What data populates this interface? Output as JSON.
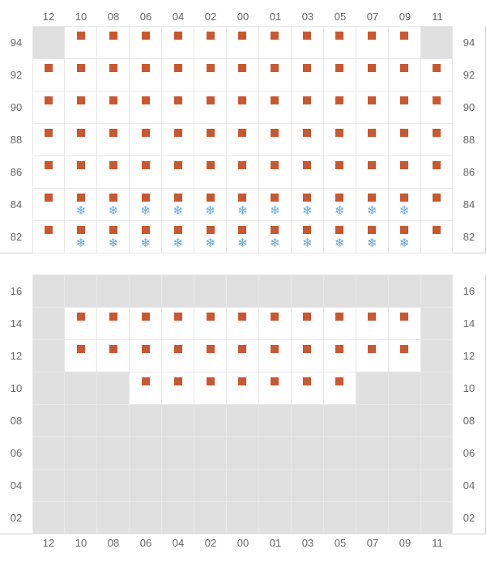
{
  "colors": {
    "marker": "#c9572f",
    "snowflake": "#5fa8dd",
    "disabled_bg": "#e0e0e0",
    "available_bg": "#ffffff",
    "grid_border": "#e8e8e8",
    "label_text": "#666666"
  },
  "columns": [
    "12",
    "10",
    "08",
    "06",
    "04",
    "02",
    "00",
    "01",
    "03",
    "05",
    "07",
    "09",
    "11"
  ],
  "sections": [
    {
      "rows": [
        {
          "label": "94",
          "cells": [
            {
              "state": "disabled"
            },
            {
              "state": "available",
              "marker": true
            },
            {
              "state": "available",
              "marker": true
            },
            {
              "state": "available",
              "marker": true
            },
            {
              "state": "available",
              "marker": true
            },
            {
              "state": "available",
              "marker": true
            },
            {
              "state": "available",
              "marker": true
            },
            {
              "state": "available",
              "marker": true
            },
            {
              "state": "available",
              "marker": true
            },
            {
              "state": "available",
              "marker": true
            },
            {
              "state": "available",
              "marker": true
            },
            {
              "state": "available",
              "marker": true
            },
            {
              "state": "disabled"
            }
          ]
        },
        {
          "label": "92",
          "cells": [
            {
              "state": "available",
              "marker": true
            },
            {
              "state": "available",
              "marker": true
            },
            {
              "state": "available",
              "marker": true
            },
            {
              "state": "available",
              "marker": true
            },
            {
              "state": "available",
              "marker": true
            },
            {
              "state": "available",
              "marker": true
            },
            {
              "state": "available",
              "marker": true
            },
            {
              "state": "available",
              "marker": true
            },
            {
              "state": "available",
              "marker": true
            },
            {
              "state": "available",
              "marker": true
            },
            {
              "state": "available",
              "marker": true
            },
            {
              "state": "available",
              "marker": true
            },
            {
              "state": "available",
              "marker": true
            }
          ]
        },
        {
          "label": "90",
          "cells": [
            {
              "state": "available",
              "marker": true
            },
            {
              "state": "available",
              "marker": true
            },
            {
              "state": "available",
              "marker": true
            },
            {
              "state": "available",
              "marker": true
            },
            {
              "state": "available",
              "marker": true
            },
            {
              "state": "available",
              "marker": true
            },
            {
              "state": "available",
              "marker": true
            },
            {
              "state": "available",
              "marker": true
            },
            {
              "state": "available",
              "marker": true
            },
            {
              "state": "available",
              "marker": true
            },
            {
              "state": "available",
              "marker": true
            },
            {
              "state": "available",
              "marker": true
            },
            {
              "state": "available",
              "marker": true
            }
          ]
        },
        {
          "label": "88",
          "cells": [
            {
              "state": "available",
              "marker": true
            },
            {
              "state": "available",
              "marker": true
            },
            {
              "state": "available",
              "marker": true
            },
            {
              "state": "available",
              "marker": true
            },
            {
              "state": "available",
              "marker": true
            },
            {
              "state": "available",
              "marker": true
            },
            {
              "state": "available",
              "marker": true
            },
            {
              "state": "available",
              "marker": true
            },
            {
              "state": "available",
              "marker": true
            },
            {
              "state": "available",
              "marker": true
            },
            {
              "state": "available",
              "marker": true
            },
            {
              "state": "available",
              "marker": true
            },
            {
              "state": "available",
              "marker": true
            }
          ]
        },
        {
          "label": "86",
          "cells": [
            {
              "state": "available",
              "marker": true
            },
            {
              "state": "available",
              "marker": true
            },
            {
              "state": "available",
              "marker": true
            },
            {
              "state": "available",
              "marker": true
            },
            {
              "state": "available",
              "marker": true
            },
            {
              "state": "available",
              "marker": true
            },
            {
              "state": "available",
              "marker": true
            },
            {
              "state": "available",
              "marker": true
            },
            {
              "state": "available",
              "marker": true
            },
            {
              "state": "available",
              "marker": true
            },
            {
              "state": "available",
              "marker": true
            },
            {
              "state": "available",
              "marker": true
            },
            {
              "state": "available",
              "marker": true
            }
          ]
        },
        {
          "label": "84",
          "cells": [
            {
              "state": "available",
              "marker": true
            },
            {
              "state": "available",
              "marker": true,
              "snow": true
            },
            {
              "state": "available",
              "marker": true,
              "snow": true
            },
            {
              "state": "available",
              "marker": true,
              "snow": true
            },
            {
              "state": "available",
              "marker": true,
              "snow": true
            },
            {
              "state": "available",
              "marker": true,
              "snow": true
            },
            {
              "state": "available",
              "marker": true,
              "snow": true
            },
            {
              "state": "available",
              "marker": true,
              "snow": true
            },
            {
              "state": "available",
              "marker": true,
              "snow": true
            },
            {
              "state": "available",
              "marker": true,
              "snow": true
            },
            {
              "state": "available",
              "marker": true,
              "snow": true
            },
            {
              "state": "available",
              "marker": true,
              "snow": true
            },
            {
              "state": "available",
              "marker": true
            }
          ]
        },
        {
          "label": "82",
          "cells": [
            {
              "state": "available",
              "marker": true
            },
            {
              "state": "available",
              "marker": true,
              "snow": true
            },
            {
              "state": "available",
              "marker": true,
              "snow": true
            },
            {
              "state": "available",
              "marker": true,
              "snow": true
            },
            {
              "state": "available",
              "marker": true,
              "snow": true
            },
            {
              "state": "available",
              "marker": true,
              "snow": true
            },
            {
              "state": "available",
              "marker": true,
              "snow": true
            },
            {
              "state": "available",
              "marker": true,
              "snow": true
            },
            {
              "state": "available",
              "marker": true,
              "snow": true
            },
            {
              "state": "available",
              "marker": true,
              "snow": true
            },
            {
              "state": "available",
              "marker": true,
              "snow": true
            },
            {
              "state": "available",
              "marker": true,
              "snow": true
            },
            {
              "state": "available",
              "marker": true
            }
          ]
        }
      ]
    },
    {
      "rows": [
        {
          "label": "16",
          "cells": [
            {
              "state": "disabled"
            },
            {
              "state": "disabled"
            },
            {
              "state": "disabled"
            },
            {
              "state": "disabled"
            },
            {
              "state": "disabled"
            },
            {
              "state": "disabled"
            },
            {
              "state": "disabled"
            },
            {
              "state": "disabled"
            },
            {
              "state": "disabled"
            },
            {
              "state": "disabled"
            },
            {
              "state": "disabled"
            },
            {
              "state": "disabled"
            },
            {
              "state": "disabled"
            }
          ]
        },
        {
          "label": "14",
          "cells": [
            {
              "state": "disabled"
            },
            {
              "state": "available",
              "marker": true
            },
            {
              "state": "available",
              "marker": true
            },
            {
              "state": "available",
              "marker": true
            },
            {
              "state": "available",
              "marker": true
            },
            {
              "state": "available",
              "marker": true
            },
            {
              "state": "available",
              "marker": true
            },
            {
              "state": "available",
              "marker": true
            },
            {
              "state": "available",
              "marker": true
            },
            {
              "state": "available",
              "marker": true
            },
            {
              "state": "available",
              "marker": true
            },
            {
              "state": "available",
              "marker": true
            },
            {
              "state": "disabled"
            }
          ]
        },
        {
          "label": "12",
          "cells": [
            {
              "state": "disabled"
            },
            {
              "state": "available",
              "marker": true
            },
            {
              "state": "available",
              "marker": true
            },
            {
              "state": "available",
              "marker": true
            },
            {
              "state": "available",
              "marker": true
            },
            {
              "state": "available",
              "marker": true
            },
            {
              "state": "available",
              "marker": true
            },
            {
              "state": "available",
              "marker": true
            },
            {
              "state": "available",
              "marker": true
            },
            {
              "state": "available",
              "marker": true
            },
            {
              "state": "available",
              "marker": true
            },
            {
              "state": "available",
              "marker": true
            },
            {
              "state": "disabled"
            }
          ]
        },
        {
          "label": "10",
          "cells": [
            {
              "state": "disabled"
            },
            {
              "state": "disabled"
            },
            {
              "state": "disabled"
            },
            {
              "state": "available",
              "marker": true
            },
            {
              "state": "available",
              "marker": true
            },
            {
              "state": "available",
              "marker": true
            },
            {
              "state": "available",
              "marker": true
            },
            {
              "state": "available",
              "marker": true
            },
            {
              "state": "available",
              "marker": true
            },
            {
              "state": "available",
              "marker": true
            },
            {
              "state": "disabled"
            },
            {
              "state": "disabled"
            },
            {
              "state": "disabled"
            }
          ]
        },
        {
          "label": "08",
          "cells": [
            {
              "state": "disabled"
            },
            {
              "state": "disabled"
            },
            {
              "state": "disabled"
            },
            {
              "state": "disabled"
            },
            {
              "state": "disabled"
            },
            {
              "state": "disabled"
            },
            {
              "state": "disabled"
            },
            {
              "state": "disabled"
            },
            {
              "state": "disabled"
            },
            {
              "state": "disabled"
            },
            {
              "state": "disabled"
            },
            {
              "state": "disabled"
            },
            {
              "state": "disabled"
            }
          ]
        },
        {
          "label": "06",
          "cells": [
            {
              "state": "disabled"
            },
            {
              "state": "disabled"
            },
            {
              "state": "disabled"
            },
            {
              "state": "disabled"
            },
            {
              "state": "disabled"
            },
            {
              "state": "disabled"
            },
            {
              "state": "disabled"
            },
            {
              "state": "disabled"
            },
            {
              "state": "disabled"
            },
            {
              "state": "disabled"
            },
            {
              "state": "disabled"
            },
            {
              "state": "disabled"
            },
            {
              "state": "disabled"
            }
          ]
        },
        {
          "label": "04",
          "cells": [
            {
              "state": "disabled"
            },
            {
              "state": "disabled"
            },
            {
              "state": "disabled"
            },
            {
              "state": "disabled"
            },
            {
              "state": "disabled"
            },
            {
              "state": "disabled"
            },
            {
              "state": "disabled"
            },
            {
              "state": "disabled"
            },
            {
              "state": "disabled"
            },
            {
              "state": "disabled"
            },
            {
              "state": "disabled"
            },
            {
              "state": "disabled"
            },
            {
              "state": "disabled"
            }
          ]
        },
        {
          "label": "02",
          "cells": [
            {
              "state": "disabled"
            },
            {
              "state": "disabled"
            },
            {
              "state": "disabled"
            },
            {
              "state": "disabled"
            },
            {
              "state": "disabled"
            },
            {
              "state": "disabled"
            },
            {
              "state": "disabled"
            },
            {
              "state": "disabled"
            },
            {
              "state": "disabled"
            },
            {
              "state": "disabled"
            },
            {
              "state": "disabled"
            },
            {
              "state": "disabled"
            },
            {
              "state": "disabled"
            }
          ]
        }
      ]
    }
  ]
}
